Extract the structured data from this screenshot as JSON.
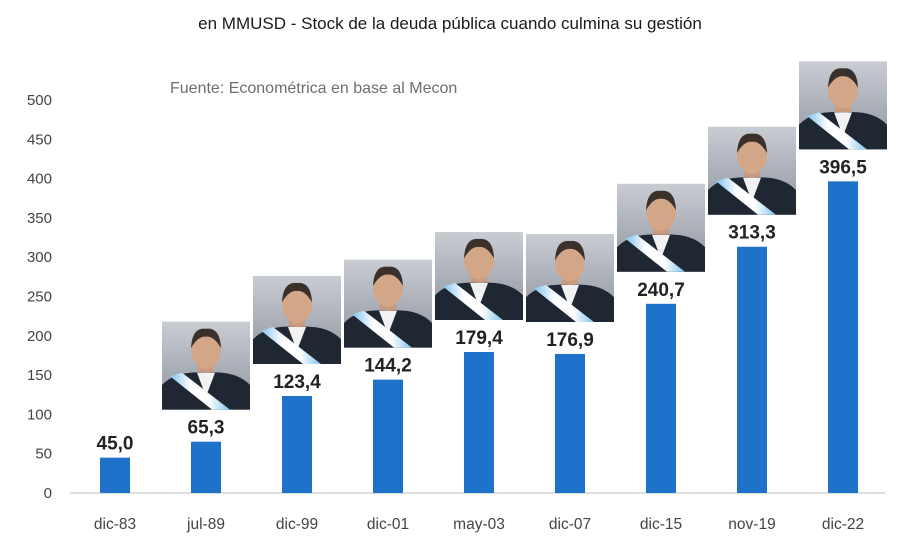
{
  "chart_data": {
    "type": "bar",
    "title": "",
    "subtitle": "en MMUSD - Stock de la deuda pública cuando culmina su gestión",
    "source": "Fuente: Econométrica en base al Mecon",
    "categories": [
      "dic-83",
      "jul-89",
      "dic-99",
      "dic-01",
      "may-03",
      "dic-07",
      "dic-15",
      "nov-19",
      "dic-22"
    ],
    "values": [
      45.0,
      65.3,
      123.4,
      144.2,
      179.4,
      176.9,
      240.7,
      313.3,
      396.5
    ],
    "value_labels": [
      "45,0",
      "65,3",
      "123,4",
      "144,2",
      "179,4",
      "176,9",
      "240,7",
      "313,3",
      "396,5"
    ],
    "yticks": [
      "0",
      "50",
      "100",
      "150",
      "200",
      "250",
      "300",
      "350",
      "400",
      "450",
      "500"
    ],
    "ylim": [
      0,
      500
    ],
    "xlabel": "",
    "ylabel": "",
    "grid": false,
    "legend": "none",
    "bar_color": "#1f72c9",
    "portraits": [
      "",
      "portrait",
      "portrait",
      "portrait",
      "portrait",
      "portrait",
      "portrait",
      "portrait",
      "portrait"
    ]
  }
}
